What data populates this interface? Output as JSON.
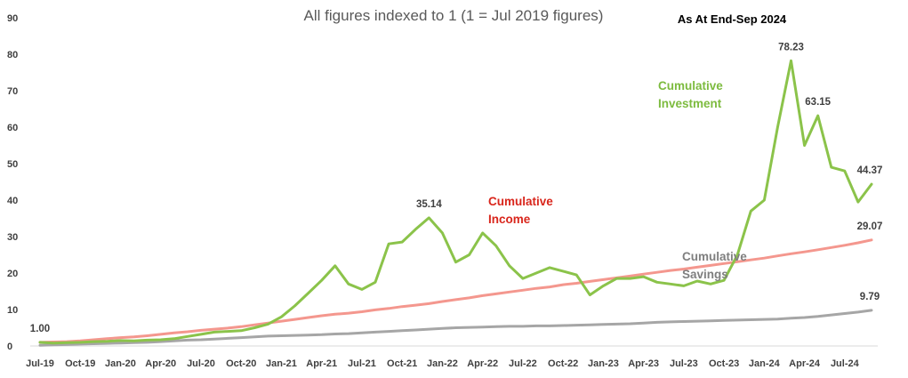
{
  "chart_data": {
    "type": "line",
    "title": "All figures indexed to 1 (1 = Jul 2019 figures)",
    "annotation": "As At End-Sep 2024",
    "ylim": [
      0,
      90
    ],
    "yticks": [
      0,
      10,
      20,
      30,
      40,
      50,
      60,
      70,
      80,
      90
    ],
    "grid": false,
    "x_tick_labels": [
      "Jul-19",
      "Oct-19",
      "Jan-20",
      "Apr-20",
      "Jul-20",
      "Oct-20",
      "Jan-21",
      "Apr-21",
      "Jul-21",
      "Oct-21",
      "Jan-22",
      "Apr-22",
      "Jul-22",
      "Oct-22",
      "Jan-23",
      "Apr-23",
      "Jul-23",
      "Oct-23",
      "Jan-24",
      "Apr-24",
      "Jul-24"
    ],
    "x": [
      "Jul-19",
      "Aug-19",
      "Sep-19",
      "Oct-19",
      "Nov-19",
      "Dec-19",
      "Jan-20",
      "Feb-20",
      "Mar-20",
      "Apr-20",
      "May-20",
      "Jun-20",
      "Jul-20",
      "Aug-20",
      "Sep-20",
      "Oct-20",
      "Nov-20",
      "Dec-20",
      "Jan-21",
      "Feb-21",
      "Mar-21",
      "Apr-21",
      "May-21",
      "Jun-21",
      "Jul-21",
      "Aug-21",
      "Sep-21",
      "Oct-21",
      "Nov-21",
      "Dec-21",
      "Jan-22",
      "Feb-22",
      "Mar-22",
      "Apr-22",
      "May-22",
      "Jun-22",
      "Jul-22",
      "Aug-22",
      "Sep-22",
      "Oct-22",
      "Nov-22",
      "Dec-22",
      "Jan-23",
      "Feb-23",
      "Mar-23",
      "Apr-23",
      "May-23",
      "Jun-23",
      "Jul-23",
      "Aug-23",
      "Sep-23",
      "Oct-23",
      "Nov-23",
      "Dec-23",
      "Jan-24",
      "Feb-24",
      "Mar-24",
      "Apr-24",
      "May-24",
      "Jun-24",
      "Jul-24",
      "Aug-24",
      "Sep-24"
    ],
    "series": [
      {
        "name": "Cumulative Investment",
        "label_lines": [
          "Cumulative",
          "Investment"
        ],
        "color": "#8BC34A",
        "values": [
          1.0,
          0.8,
          0.9,
          1.0,
          1.2,
          1.3,
          1.5,
          1.4,
          1.6,
          1.7,
          2.0,
          2.6,
          3.2,
          3.8,
          4.0,
          4.2,
          5.0,
          6.0,
          8.0,
          11.0,
          14.5,
          18.0,
          22.0,
          17.0,
          15.5,
          17.5,
          28.0,
          28.5,
          32.0,
          35.14,
          31.0,
          23.0,
          25.0,
          31.0,
          27.5,
          22.0,
          18.5,
          20.0,
          21.5,
          20.5,
          19.5,
          14.0,
          16.5,
          18.5,
          18.5,
          19.0,
          17.5,
          17.0,
          16.5,
          17.8,
          17.0,
          18.0,
          25.0,
          37.0,
          40.0,
          60.0,
          78.23,
          55.0,
          63.15,
          49.0,
          48.0,
          39.5,
          44.37
        ]
      },
      {
        "name": "Cumulative Income",
        "label_lines": [
          "Cumulative",
          "Income"
        ],
        "color": "#F4978E",
        "values": [
          1.0,
          1.1,
          1.2,
          1.4,
          1.7,
          2.0,
          2.3,
          2.5,
          2.8,
          3.2,
          3.6,
          3.9,
          4.3,
          4.6,
          4.9,
          5.3,
          5.8,
          6.3,
          6.8,
          7.3,
          7.8,
          8.3,
          8.7,
          9.0,
          9.4,
          9.9,
          10.3,
          10.8,
          11.2,
          11.6,
          12.2,
          12.7,
          13.2,
          13.8,
          14.3,
          14.8,
          15.3,
          15.8,
          16.2,
          16.8,
          17.2,
          17.7,
          18.2,
          18.7,
          19.2,
          19.7,
          20.2,
          20.7,
          21.1,
          21.6,
          22.1,
          22.6,
          23.1,
          23.6,
          24.1,
          24.7,
          25.3,
          25.8,
          26.4,
          27.0,
          27.6,
          28.3,
          29.07
        ]
      },
      {
        "name": "Cumulative Savings",
        "label_lines": [
          "Cumulative",
          "Savings"
        ],
        "color": "#A6A6A6",
        "values": [
          0.2,
          0.3,
          0.4,
          0.5,
          0.6,
          0.7,
          0.8,
          0.9,
          1.0,
          1.2,
          1.4,
          1.6,
          1.7,
          1.9,
          2.1,
          2.3,
          2.5,
          2.7,
          2.8,
          2.9,
          3.0,
          3.1,
          3.3,
          3.4,
          3.6,
          3.8,
          4.0,
          4.2,
          4.4,
          4.6,
          4.8,
          5.0,
          5.1,
          5.2,
          5.3,
          5.4,
          5.4,
          5.5,
          5.5,
          5.6,
          5.7,
          5.8,
          5.9,
          6.0,
          6.1,
          6.3,
          6.5,
          6.6,
          6.7,
          6.8,
          6.9,
          7.0,
          7.1,
          7.2,
          7.3,
          7.4,
          7.6,
          7.8,
          8.1,
          8.5,
          8.9,
          9.3,
          9.79
        ]
      }
    ],
    "data_labels": [
      {
        "text": "1.00",
        "series": 0,
        "index": 0
      },
      {
        "text": "35.14",
        "series": 0,
        "index": 29
      },
      {
        "text": "78.23",
        "series": 0,
        "index": 56
      },
      {
        "text": "63.15",
        "series": 0,
        "index": 58
      },
      {
        "text": "44.37",
        "series": 0,
        "index": 62
      },
      {
        "text": "29.07",
        "series": 1,
        "index": 62
      },
      {
        "text": "9.79",
        "series": 2,
        "index": 62
      }
    ]
  }
}
